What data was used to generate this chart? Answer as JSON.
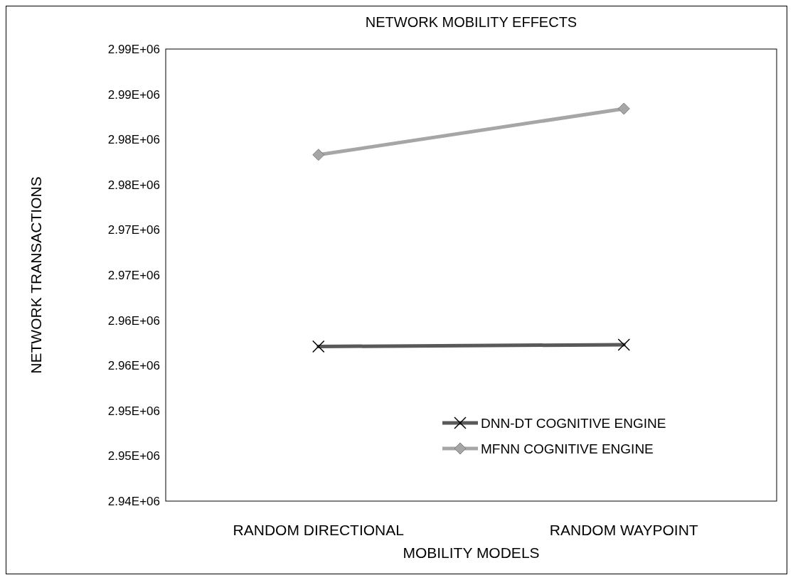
{
  "chart_data": {
    "type": "line",
    "title": "NETWORK MOBILITY EFFECTS",
    "xlabel": "MOBILITY MODELS",
    "ylabel": "NETWORK TRANSACTIONS",
    "categories": [
      "RANDOM DIRECTIONAL",
      "RANDOM WAYPOINT"
    ],
    "series": [
      {
        "name": "DNN-DT COGNITIVE ENGINE",
        "color": "#595959",
        "marker": "cross",
        "values": [
          2957100,
          2957300
        ]
      },
      {
        "name": "MFNN COGNITIVE ENGINE",
        "color": "#a6a6a6",
        "marker": "diamond",
        "values": [
          2978300,
          2983400
        ]
      }
    ],
    "ylim": [
      2940000,
      2990000
    ],
    "yticks": [
      {
        "value": 2940000,
        "label": "2.94E+06"
      },
      {
        "value": 2945000,
        "label": "2.95E+06"
      },
      {
        "value": 2950000,
        "label": "2.95E+06"
      },
      {
        "value": 2955000,
        "label": "2.96E+06"
      },
      {
        "value": 2960000,
        "label": "2.96E+06"
      },
      {
        "value": 2965000,
        "label": "2.97E+06"
      },
      {
        "value": 2970000,
        "label": "2.97E+06"
      },
      {
        "value": 2975000,
        "label": "2.98E+06"
      },
      {
        "value": 2980000,
        "label": "2.98E+06"
      },
      {
        "value": 2985000,
        "label": "2.99E+06"
      },
      {
        "value": 2990000,
        "label": "2.99E+06"
      }
    ],
    "grid": false,
    "legend": "bottom right",
    "line_style": "solid"
  }
}
